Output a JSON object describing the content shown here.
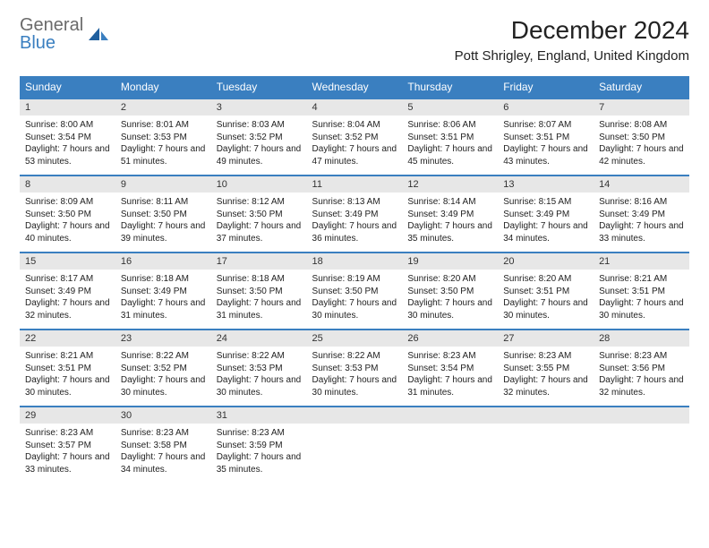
{
  "logo": {
    "line1": "General",
    "line2": "Blue"
  },
  "title": "December 2024",
  "location": "Pott Shrigley, England, United Kingdom",
  "colors": {
    "header_bg": "#3a7fc0",
    "header_text": "#ffffff",
    "daynum_bg": "#e7e7e7",
    "row_border": "#3a7fc0",
    "text": "#222222",
    "logo_gray": "#6a6a6a",
    "logo_blue": "#3a7fc0"
  },
  "weekdays": [
    "Sunday",
    "Monday",
    "Tuesday",
    "Wednesday",
    "Thursday",
    "Friday",
    "Saturday"
  ],
  "weeks": [
    [
      {
        "n": "1",
        "sr": "8:00 AM",
        "ss": "3:54 PM",
        "dl": "7 hours and 53 minutes."
      },
      {
        "n": "2",
        "sr": "8:01 AM",
        "ss": "3:53 PM",
        "dl": "7 hours and 51 minutes."
      },
      {
        "n": "3",
        "sr": "8:03 AM",
        "ss": "3:52 PM",
        "dl": "7 hours and 49 minutes."
      },
      {
        "n": "4",
        "sr": "8:04 AM",
        "ss": "3:52 PM",
        "dl": "7 hours and 47 minutes."
      },
      {
        "n": "5",
        "sr": "8:06 AM",
        "ss": "3:51 PM",
        "dl": "7 hours and 45 minutes."
      },
      {
        "n": "6",
        "sr": "8:07 AM",
        "ss": "3:51 PM",
        "dl": "7 hours and 43 minutes."
      },
      {
        "n": "7",
        "sr": "8:08 AM",
        "ss": "3:50 PM",
        "dl": "7 hours and 42 minutes."
      }
    ],
    [
      {
        "n": "8",
        "sr": "8:09 AM",
        "ss": "3:50 PM",
        "dl": "7 hours and 40 minutes."
      },
      {
        "n": "9",
        "sr": "8:11 AM",
        "ss": "3:50 PM",
        "dl": "7 hours and 39 minutes."
      },
      {
        "n": "10",
        "sr": "8:12 AM",
        "ss": "3:50 PM",
        "dl": "7 hours and 37 minutes."
      },
      {
        "n": "11",
        "sr": "8:13 AM",
        "ss": "3:49 PM",
        "dl": "7 hours and 36 minutes."
      },
      {
        "n": "12",
        "sr": "8:14 AM",
        "ss": "3:49 PM",
        "dl": "7 hours and 35 minutes."
      },
      {
        "n": "13",
        "sr": "8:15 AM",
        "ss": "3:49 PM",
        "dl": "7 hours and 34 minutes."
      },
      {
        "n": "14",
        "sr": "8:16 AM",
        "ss": "3:49 PM",
        "dl": "7 hours and 33 minutes."
      }
    ],
    [
      {
        "n": "15",
        "sr": "8:17 AM",
        "ss": "3:49 PM",
        "dl": "7 hours and 32 minutes."
      },
      {
        "n": "16",
        "sr": "8:18 AM",
        "ss": "3:49 PM",
        "dl": "7 hours and 31 minutes."
      },
      {
        "n": "17",
        "sr": "8:18 AM",
        "ss": "3:50 PM",
        "dl": "7 hours and 31 minutes."
      },
      {
        "n": "18",
        "sr": "8:19 AM",
        "ss": "3:50 PM",
        "dl": "7 hours and 30 minutes."
      },
      {
        "n": "19",
        "sr": "8:20 AM",
        "ss": "3:50 PM",
        "dl": "7 hours and 30 minutes."
      },
      {
        "n": "20",
        "sr": "8:20 AM",
        "ss": "3:51 PM",
        "dl": "7 hours and 30 minutes."
      },
      {
        "n": "21",
        "sr": "8:21 AM",
        "ss": "3:51 PM",
        "dl": "7 hours and 30 minutes."
      }
    ],
    [
      {
        "n": "22",
        "sr": "8:21 AM",
        "ss": "3:51 PM",
        "dl": "7 hours and 30 minutes."
      },
      {
        "n": "23",
        "sr": "8:22 AM",
        "ss": "3:52 PM",
        "dl": "7 hours and 30 minutes."
      },
      {
        "n": "24",
        "sr": "8:22 AM",
        "ss": "3:53 PM",
        "dl": "7 hours and 30 minutes."
      },
      {
        "n": "25",
        "sr": "8:22 AM",
        "ss": "3:53 PM",
        "dl": "7 hours and 30 minutes."
      },
      {
        "n": "26",
        "sr": "8:23 AM",
        "ss": "3:54 PM",
        "dl": "7 hours and 31 minutes."
      },
      {
        "n": "27",
        "sr": "8:23 AM",
        "ss": "3:55 PM",
        "dl": "7 hours and 32 minutes."
      },
      {
        "n": "28",
        "sr": "8:23 AM",
        "ss": "3:56 PM",
        "dl": "7 hours and 32 minutes."
      }
    ],
    [
      {
        "n": "29",
        "sr": "8:23 AM",
        "ss": "3:57 PM",
        "dl": "7 hours and 33 minutes."
      },
      {
        "n": "30",
        "sr": "8:23 AM",
        "ss": "3:58 PM",
        "dl": "7 hours and 34 minutes."
      },
      {
        "n": "31",
        "sr": "8:23 AM",
        "ss": "3:59 PM",
        "dl": "7 hours and 35 minutes."
      },
      {
        "empty": true
      },
      {
        "empty": true
      },
      {
        "empty": true
      },
      {
        "empty": true
      }
    ]
  ],
  "labels": {
    "sunrise": "Sunrise: ",
    "sunset": "Sunset: ",
    "daylight": "Daylight: "
  }
}
